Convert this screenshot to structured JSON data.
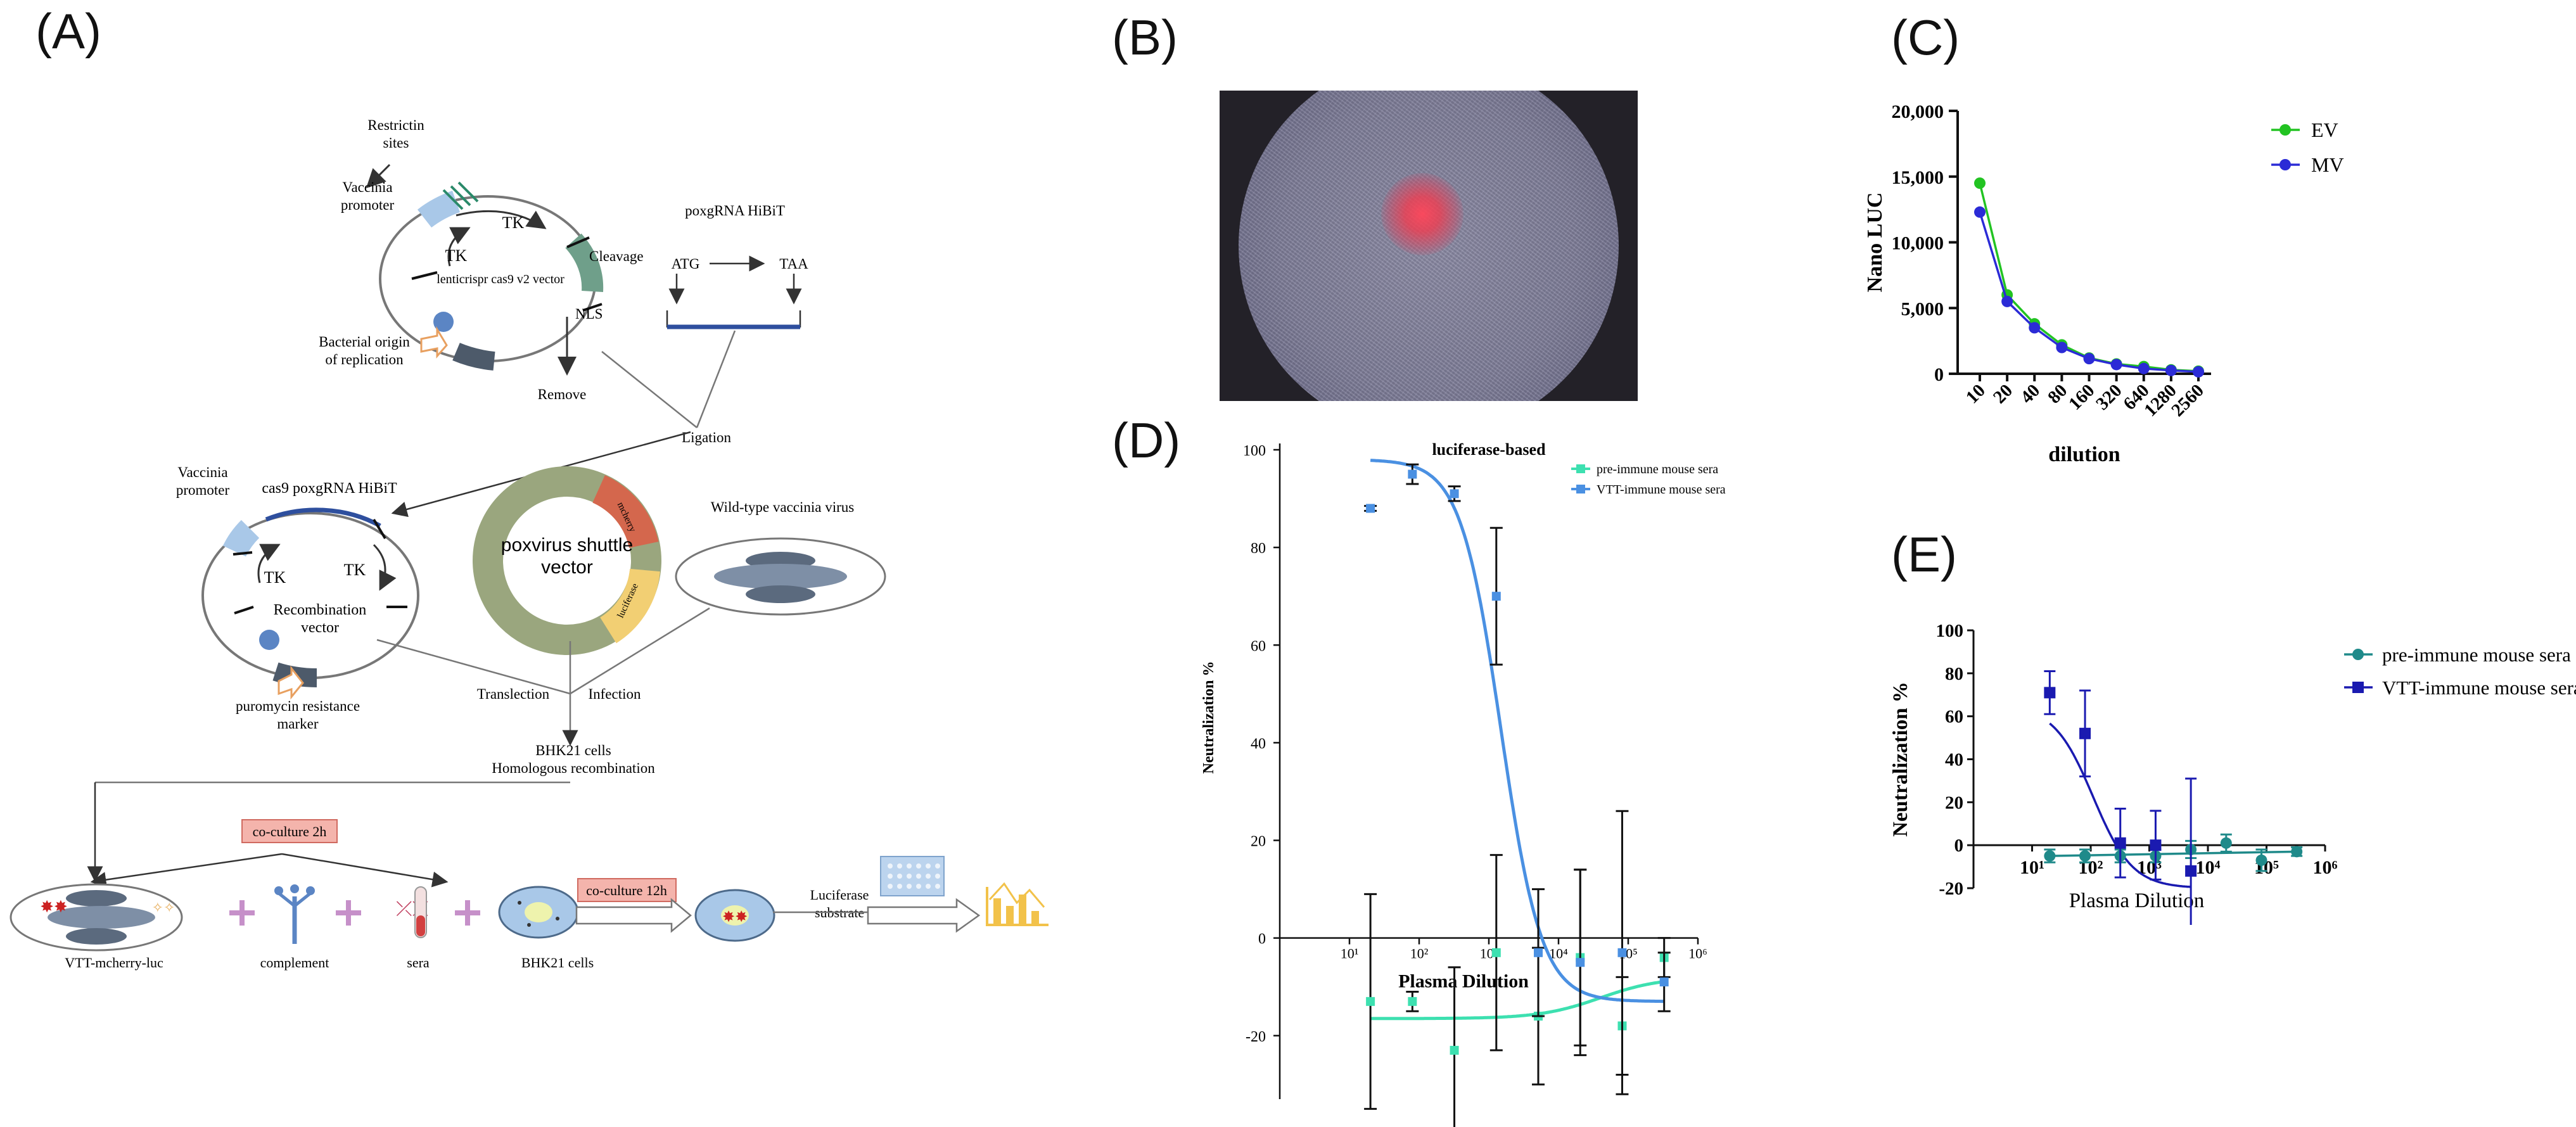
{
  "panels": {
    "a": "(A)",
    "b": "(B)",
    "c": "(C)",
    "d": "(D)",
    "e": "(E)"
  },
  "panel_a": {
    "labels": {
      "restrictin": "Restrictin",
      "sites": "sites",
      "vaccinia_promoter_1a": "Vaccinia",
      "vaccinia_promoter_1b": "promoter",
      "tk_top": "TK",
      "tk_left": "TK",
      "vector_name": "lenticrispr cas9 v2 vector",
      "cleavage": "Cleavage",
      "nls": "NLS",
      "remove": "Remove",
      "bacterial_a": "Bacterial origin",
      "bacterial_b": "of replication",
      "poxgrna_title": "poxgRNA HiBiT",
      "atg": "ATG",
      "taa": "TAA",
      "ligation": "Ligation",
      "vaccinia_promoter_2a": "Vaccinia",
      "vaccinia_promoter_2b": "promoter",
      "cas9_poxgrna": "cas9 poxgRNA HiBiT",
      "tk_2a": "TK",
      "tk_2b": "TK",
      "recomb_a": "Recombination",
      "recomb_b": "vector",
      "puro_a": "puromycin resistance",
      "puro_b": "marker",
      "poxvirus_a": "poxvirus shuttle",
      "poxvirus_b": "vector",
      "mcherry": "mcherry",
      "luciferase": "luciferase",
      "wild_type": "Wild-type vaccinia virus",
      "translection": "Translection",
      "infection": "Infection",
      "bhk21_a": "BHK21 cells",
      "bhk21_b": "Homologous recombination",
      "coculture_2h": "co-culture 2h",
      "coculture_12h": "co-culture 12h",
      "vtt": "VTT-mcherry-luc",
      "complement": "complement",
      "sera": "sera",
      "bhk21_cells": "BHK21 cells",
      "luciferase_a": "Luciferase",
      "luciferase_b": "substrate"
    },
    "colors": {
      "pink_box": "#f4b4ac",
      "pink_border": "#d06a60",
      "plus": "#c690c9",
      "plasmid": "#8a8a8a",
      "blue_line": "#2e4f9e"
    }
  },
  "panel_b": {
    "description_icon": "microscopy-image"
  },
  "chart_data": [
    {
      "id": "C",
      "type": "line",
      "xlabel": "dilution",
      "ylabel": "Nano LUC",
      "categories": [
        "10",
        "20",
        "40",
        "80",
        "160",
        "320",
        "640",
        "1280",
        "2560"
      ],
      "ylim": [
        0,
        20000
      ],
      "yticks": [
        "0",
        "5,000",
        "10,000",
        "15,000",
        "20,000"
      ],
      "series": [
        {
          "name": "EV",
          "color": "#22c322",
          "values": [
            14500,
            6000,
            3800,
            2200,
            1200,
            750,
            550,
            300,
            200
          ]
        },
        {
          "name": "MV",
          "color": "#2b2bd6",
          "values": [
            12300,
            5500,
            3500,
            2000,
            1150,
            700,
            400,
            250,
            150
          ]
        }
      ],
      "legend": "top-right"
    },
    {
      "id": "D",
      "type": "scatter",
      "title": "luciferase-based",
      "xlabel": "Plasma Dilution",
      "ylabel": "Neutralization %",
      "xscale": "log",
      "xlim": [
        1,
        1000000
      ],
      "ylim": [
        -33,
        100
      ],
      "xticks": [
        "10¹",
        "10²",
        "10³",
        "10⁴",
        "10⁵",
        "10⁶"
      ],
      "yticks": [
        "-20",
        "0",
        "20",
        "40",
        "60",
        "80",
        "100"
      ],
      "series": [
        {
          "name": "pre-immune mouse sera",
          "color": "#3de0b0",
          "x": [
            20,
            80,
            320,
            1280,
            5120,
            20480,
            81920,
            327680
          ],
          "y": [
            -13,
            -13,
            -23,
            -3,
            -16,
            -4,
            -18,
            -4
          ],
          "err": [
            22,
            2,
            17,
            20,
            14,
            18,
            10,
            4
          ]
        },
        {
          "name": "VTT-immune mouse sera",
          "color": "#4a90e2",
          "x": [
            20,
            80,
            320,
            1280,
            5120,
            20480,
            81920,
            327680
          ],
          "y": [
            88,
            95,
            91,
            70,
            -3,
            -5,
            -3,
            -9
          ],
          "err": [
            0.5,
            2,
            1.5,
            14,
            13,
            19,
            29,
            6
          ]
        }
      ],
      "legend": "top-right"
    },
    {
      "id": "E",
      "type": "scatter",
      "xlabel": "Plasma Dilution",
      "ylabel": "Neutralization %",
      "xscale": "log",
      "xlim": [
        1,
        1000000
      ],
      "ylim": [
        -20,
        100
      ],
      "xticks": [
        "10¹",
        "10²",
        "10³",
        "10⁴",
        "10⁵",
        "10⁶"
      ],
      "yticks": [
        "-20",
        "0",
        "20",
        "40",
        "60",
        "80",
        "100"
      ],
      "series": [
        {
          "name": "pre-immune mouse sera",
          "color": "#1f8a8a",
          "x": [
            20,
            80,
            320,
            1280,
            5120,
            20480,
            81920,
            327680
          ],
          "y": [
            -5,
            -5,
            -5,
            -5,
            -2,
            1,
            -7,
            -3
          ],
          "err": [
            3,
            3,
            3,
            3,
            4,
            4,
            5,
            2
          ]
        },
        {
          "name": "VTT-immune mouse sera",
          "color": "#1a1ab0",
          "x": [
            20,
            80,
            320,
            1280,
            5120
          ],
          "y": [
            71,
            52,
            1,
            0,
            -12
          ],
          "err": [
            10,
            20,
            16,
            16,
            43
          ]
        }
      ],
      "legend": "right"
    }
  ]
}
